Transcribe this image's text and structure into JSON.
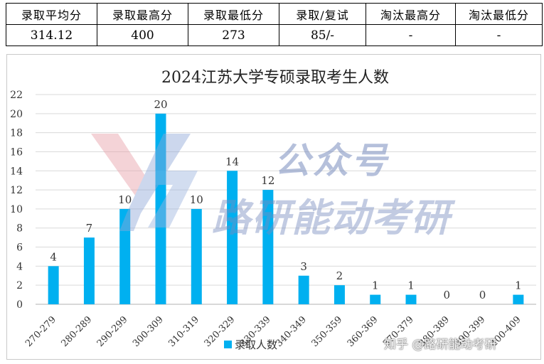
{
  "table": {
    "headers": [
      "录取平均分",
      "录取最高分",
      "录取最低分",
      "录取/复试",
      "淘汰最高分",
      "淘汰最低分"
    ],
    "values": [
      "314.12",
      "400",
      "273",
      "85/-",
      "-",
      "-"
    ]
  },
  "chart_data": {
    "type": "bar",
    "title": "2024江苏大学专硕录取考生人数",
    "categories": [
      "270-279",
      "280-289",
      "290-299",
      "300-309",
      "310-319",
      "320-329",
      "330-339",
      "340-349",
      "350-359",
      "360-369",
      "370-379",
      "380-389",
      "390-399",
      "400-409"
    ],
    "series": [
      {
        "name": "录取人数",
        "values": [
          4,
          7,
          10,
          20,
          10,
          14,
          12,
          3,
          2,
          1,
          1,
          0,
          0,
          1
        ]
      }
    ],
    "ylim": [
      0,
      22
    ],
    "yticks": [
      0,
      2,
      4,
      6,
      8,
      10,
      12,
      14,
      16,
      18,
      20,
      22
    ],
    "grid": true,
    "legend": "bottom",
    "bar_color": "#00B0F0"
  },
  "watermark": {
    "line1": "公众号",
    "line2": "路研能动考研",
    "credit": "知乎 @路研能动考研"
  }
}
